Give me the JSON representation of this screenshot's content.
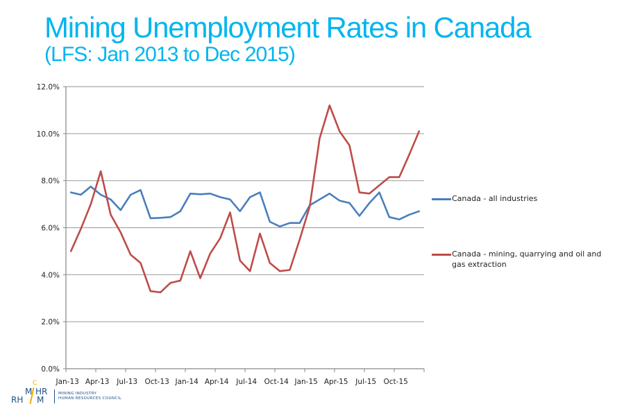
{
  "slide": {
    "title": "Mining Unemployment Rates in Canada",
    "subtitle": "(LFS: Jan 2013 to Dec 2015)"
  },
  "logo": {
    "mark_top": "M",
    "mark_c": "C",
    "mark_hr": "HR",
    "mark_bottom_left": "RH",
    "mark_bottom_right": "M",
    "line1": "MINING INDUSTRY",
    "line2": "HUMAN RESOURCES COUNCIL",
    "color": "#1c4f87",
    "accent": "#f2a900"
  },
  "chart_data": {
    "type": "line",
    "title": "",
    "xlabel": "",
    "ylabel": "",
    "ylim": [
      0,
      12
    ],
    "yticks": [
      0,
      2,
      4,
      6,
      8,
      10,
      12
    ],
    "ytick_labels": [
      "0.0%",
      "2.0%",
      "4.0%",
      "6.0%",
      "8.0%",
      "10.0%",
      "12.0%"
    ],
    "grid": true,
    "legend_position": "right",
    "x": [
      "Jan-13",
      "Feb-13",
      "Mar-13",
      "Apr-13",
      "May-13",
      "Jun-13",
      "Jul-13",
      "Aug-13",
      "Sep-13",
      "Oct-13",
      "Nov-13",
      "Dec-13",
      "Jan-14",
      "Feb-14",
      "Mar-14",
      "Apr-14",
      "May-14",
      "Jun-14",
      "Jul-14",
      "Aug-14",
      "Sep-14",
      "Oct-14",
      "Nov-14",
      "Dec-14",
      "Jan-15",
      "Feb-15",
      "Mar-15",
      "Apr-15",
      "May-15",
      "Jun-15",
      "Jul-15",
      "Aug-15",
      "Sep-15",
      "Oct-15",
      "Nov-15",
      "Dec-15"
    ],
    "xtick_labels": [
      "Jan-13",
      "Apr-13",
      "Jul-13",
      "Oct-13",
      "Jan-14",
      "Apr-14",
      "Jul-14",
      "Oct-14",
      "Jan-15",
      "Apr-15",
      "Jul-15",
      "Oct-15"
    ],
    "series": [
      {
        "name": "Canada - all industries",
        "color": "#4a7ebb",
        "values": [
          7.5,
          7.4,
          7.75,
          7.4,
          7.2,
          6.75,
          7.4,
          7.6,
          6.4,
          6.42,
          6.45,
          6.7,
          7.45,
          7.42,
          7.45,
          7.3,
          7.2,
          6.7,
          7.3,
          7.5,
          6.25,
          6.05,
          6.2,
          6.2,
          6.95,
          7.2,
          7.45,
          7.15,
          7.05,
          6.5,
          7.05,
          7.5,
          6.45,
          6.35,
          6.55,
          6.7
        ]
      },
      {
        "name": "Canada - mining, quarrying and oil and gas extraction",
        "color": "#be4b48",
        "values": [
          5.0,
          5.95,
          7.0,
          8.4,
          6.55,
          5.8,
          4.85,
          4.5,
          3.3,
          3.25,
          3.65,
          3.75,
          5.0,
          3.85,
          4.9,
          5.55,
          6.65,
          4.6,
          4.15,
          5.75,
          4.5,
          4.15,
          4.2,
          5.5,
          6.9,
          9.8,
          11.2,
          10.1,
          9.5,
          7.5,
          7.45,
          7.8,
          8.15,
          8.15,
          9.1,
          10.1
        ]
      }
    ],
    "legend": {
      "items": [
        {
          "label": "Canada - all industries",
          "color": "#4a7ebb"
        },
        {
          "label": "Canada - mining, quarrying and oil and gas extraction",
          "color": "#be4b48"
        }
      ]
    }
  }
}
